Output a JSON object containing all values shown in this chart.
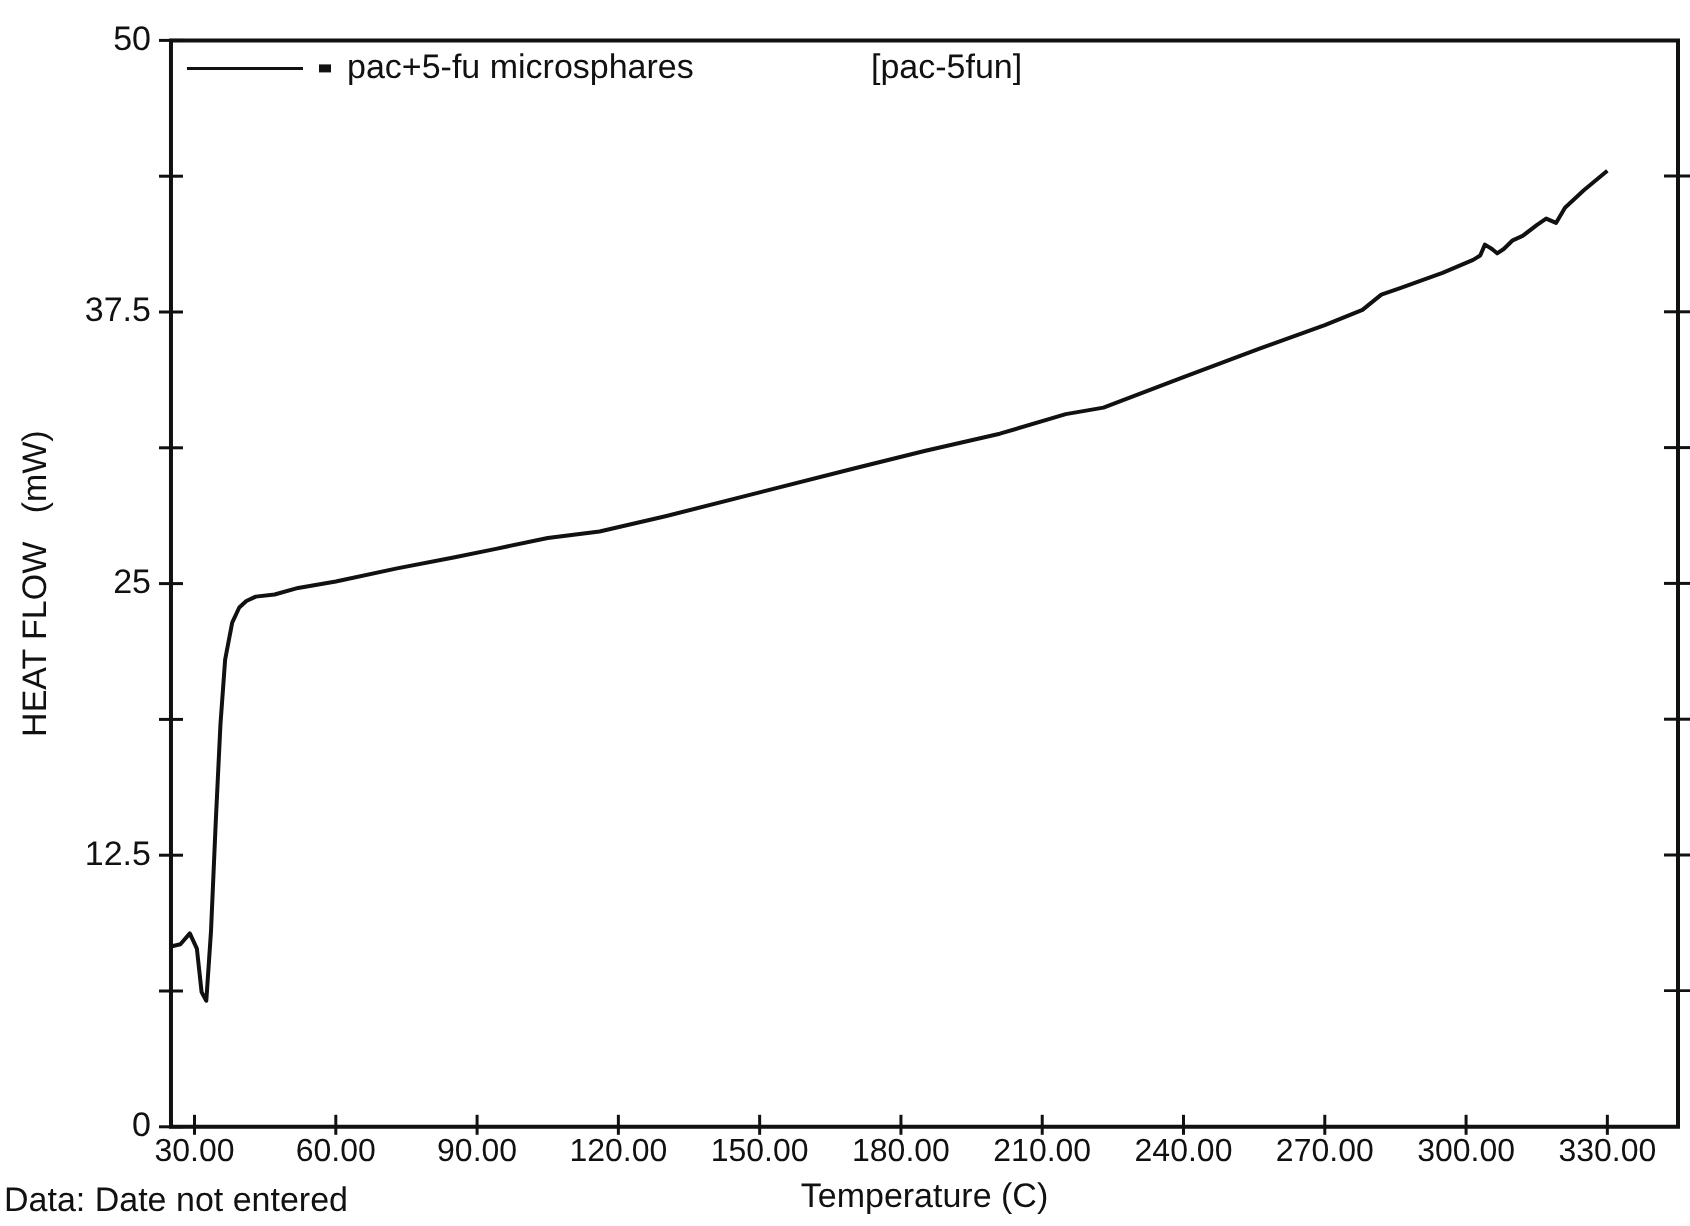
{
  "chart_data": {
    "type": "line",
    "xlabel": "Temperature (C)",
    "ylabel": "HEAT FLOW   (mW)",
    "annotations": [
      "[pac-5fun]",
      "Data: Date not entered"
    ],
    "xlim": [
      25,
      345
    ],
    "ylim": [
      0,
      50
    ],
    "xticks": [
      {
        "value": 30,
        "label": "30.00"
      },
      {
        "value": 60,
        "label": "60.00"
      },
      {
        "value": 90,
        "label": "90.00"
      },
      {
        "value": 120,
        "label": "120.00"
      },
      {
        "value": 150,
        "label": "150.00"
      },
      {
        "value": 180,
        "label": "180.00"
      },
      {
        "value": 210,
        "label": "210.00"
      },
      {
        "value": 240,
        "label": "240.00"
      },
      {
        "value": 270,
        "label": "270.00"
      },
      {
        "value": 300,
        "label": "300.00"
      },
      {
        "value": 330,
        "label": "330.00"
      }
    ],
    "yticks": [
      0,
      {
        "value": 6.25,
        "label": null
      },
      12.5,
      {
        "value": 18.75,
        "label": null
      },
      25,
      {
        "value": 31.25,
        "label": null
      },
      37.5,
      {
        "value": 43.75,
        "label": null
      },
      50
    ],
    "grid": false,
    "legend": "top left",
    "marker": "none",
    "line_style": "solid",
    "series": [
      {
        "name": "pac+5-fu microsphares",
        "color": "#111111",
        "x": [
          25,
          27,
          29,
          30.5,
          31.5,
          32.5,
          33.5,
          34.5,
          35.5,
          36.5,
          38,
          39.5,
          41,
          43,
          47,
          52,
          60,
          73,
          85,
          94,
          105,
          116,
          130,
          150,
          170,
          185,
          201,
          215,
          223,
          240,
          256,
          270,
          278,
          282,
          286,
          295,
          301.5,
          303,
          304,
          305.5,
          306.6,
          308,
          309.9,
          312,
          315,
          317,
          319.1,
          321,
          325,
          330
        ],
        "values": [
          8.3,
          8.4,
          8.9,
          8.2,
          6.2,
          5.8,
          9,
          14,
          18.5,
          21.5,
          23.2,
          23.9,
          24.2,
          24.4,
          24.5,
          24.8,
          25.1,
          25.7,
          26.2,
          26.6,
          27.1,
          27.4,
          28.1,
          29.2,
          30.3,
          31.1,
          31.9,
          32.8,
          33.1,
          34.5,
          35.8,
          36.9,
          37.6,
          38.3,
          38.6,
          39.3,
          39.9,
          40.1,
          40.6,
          40.4,
          40.2,
          40.4,
          40.8,
          41,
          41.5,
          41.8,
          41.6,
          42.3,
          43.1,
          44
        ]
      }
    ]
  }
}
